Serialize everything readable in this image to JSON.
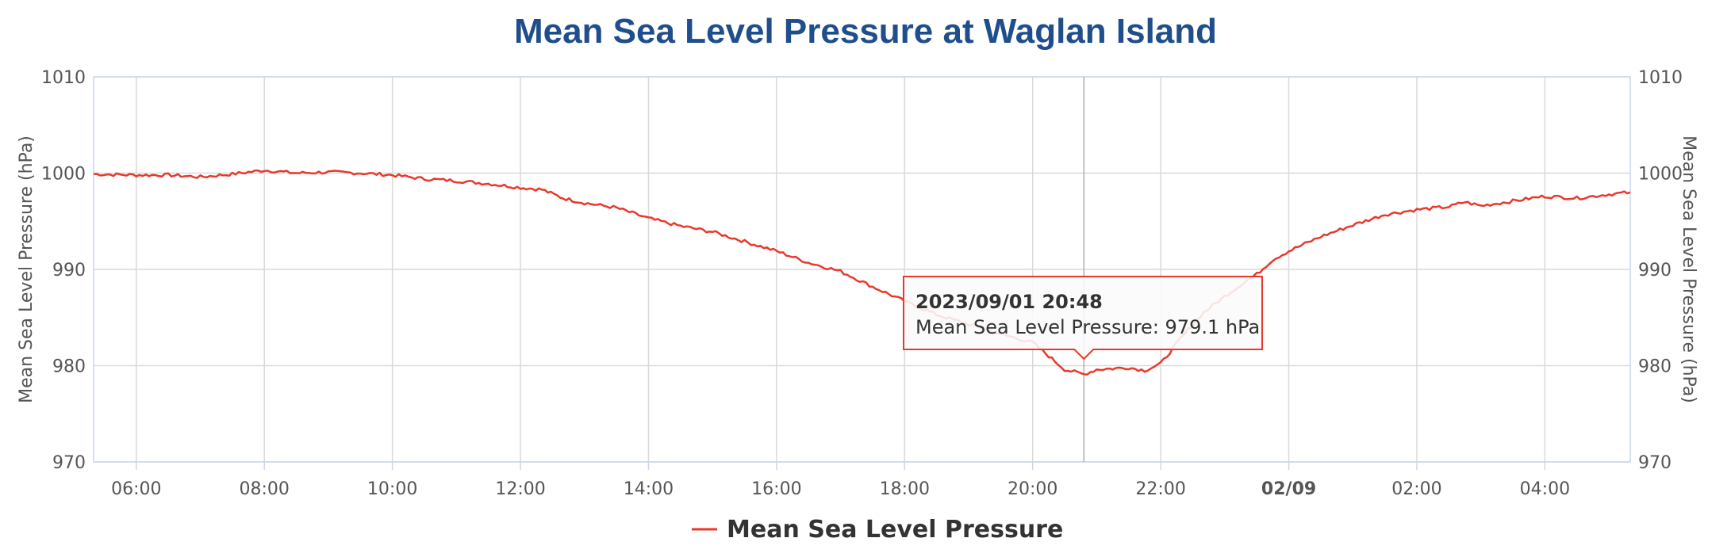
{
  "chart_data": {
    "type": "line",
    "title": "Mean Sea Level Pressure at Waglan Island",
    "ylabel_left": "Mean Sea Level Pressure (hPa)",
    "ylabel_right": "Mean Sea Level Pressure (hPa)",
    "ylim": [
      970,
      1010
    ],
    "yticks": [
      970,
      980,
      990,
      1000,
      1010
    ],
    "xlim": [
      "2023-09-01 05:20",
      "2023-09-02 05:20"
    ],
    "xticks": [
      {
        "t": "2023-09-01 06:00",
        "label": "06:00",
        "bold": false
      },
      {
        "t": "2023-09-01 08:00",
        "label": "08:00",
        "bold": false
      },
      {
        "t": "2023-09-01 10:00",
        "label": "10:00",
        "bold": false
      },
      {
        "t": "2023-09-01 12:00",
        "label": "12:00",
        "bold": false
      },
      {
        "t": "2023-09-01 14:00",
        "label": "14:00",
        "bold": false
      },
      {
        "t": "2023-09-01 16:00",
        "label": "16:00",
        "bold": false
      },
      {
        "t": "2023-09-01 18:00",
        "label": "18:00",
        "bold": false
      },
      {
        "t": "2023-09-01 20:00",
        "label": "20:00",
        "bold": false
      },
      {
        "t": "2023-09-01 22:00",
        "label": "22:00",
        "bold": false
      },
      {
        "t": "2023-09-02 00:00",
        "label": "02/09",
        "bold": true
      },
      {
        "t": "2023-09-02 02:00",
        "label": "02:00",
        "bold": false
      },
      {
        "t": "2023-09-02 04:00",
        "label": "04:00",
        "bold": false
      }
    ],
    "grid": true,
    "legend_position": "bottom-center",
    "series": [
      {
        "name": "Mean Sea Level Pressure",
        "color": "#e8392c",
        "points": [
          [
            "2023-09-01 05:20",
            999.9
          ],
          [
            "2023-09-01 06:00",
            999.8
          ],
          [
            "2023-09-01 06:30",
            999.8
          ],
          [
            "2023-09-01 07:00",
            999.6
          ],
          [
            "2023-09-01 07:30",
            999.9
          ],
          [
            "2023-09-01 08:00",
            1000.3
          ],
          [
            "2023-09-01 08:30",
            1000.0
          ],
          [
            "2023-09-01 09:00",
            1000.1
          ],
          [
            "2023-09-01 09:30",
            1000.0
          ],
          [
            "2023-09-01 10:00",
            999.8
          ],
          [
            "2023-09-01 10:30",
            999.4
          ],
          [
            "2023-09-01 11:00",
            999.2
          ],
          [
            "2023-09-01 11:30",
            998.9
          ],
          [
            "2023-09-01 12:00",
            998.5
          ],
          [
            "2023-09-01 12:20",
            998.3
          ],
          [
            "2023-09-01 12:40",
            997.4
          ],
          [
            "2023-09-01 13:00",
            996.9
          ],
          [
            "2023-09-01 13:30",
            996.4
          ],
          [
            "2023-09-01 14:00",
            995.3
          ],
          [
            "2023-09-01 14:30",
            994.5
          ],
          [
            "2023-09-01 15:00",
            993.9
          ],
          [
            "2023-09-01 15:30",
            992.9
          ],
          [
            "2023-09-01 16:00",
            991.9
          ],
          [
            "2023-09-01 16:30",
            990.7
          ],
          [
            "2023-09-01 17:00",
            989.8
          ],
          [
            "2023-09-01 17:30",
            988.2
          ],
          [
            "2023-09-01 18:00",
            986.7
          ],
          [
            "2023-09-01 18:30",
            985.3
          ],
          [
            "2023-09-01 19:00",
            984.3
          ],
          [
            "2023-09-01 19:30",
            983.3
          ],
          [
            "2023-09-01 20:00",
            982.4
          ],
          [
            "2023-09-01 20:15",
            981.0
          ],
          [
            "2023-09-01 20:30",
            979.6
          ],
          [
            "2023-09-01 20:48",
            979.1
          ],
          [
            "2023-09-01 21:00",
            979.6
          ],
          [
            "2023-09-01 21:30",
            979.8
          ],
          [
            "2023-09-01 21:45",
            979.5
          ],
          [
            "2023-09-01 22:00",
            980.2
          ],
          [
            "2023-09-01 22:20",
            983.0
          ],
          [
            "2023-09-01 22:40",
            985.5
          ],
          [
            "2023-09-01 23:00",
            987.2
          ],
          [
            "2023-09-01 23:20",
            988.8
          ],
          [
            "2023-09-01 23:30",
            989.5
          ],
          [
            "2023-09-01 23:45",
            991.0
          ],
          [
            "2023-09-02 00:00",
            991.9
          ],
          [
            "2023-09-02 00:30",
            993.4
          ],
          [
            "2023-09-02 01:00",
            994.6
          ],
          [
            "2023-09-02 01:30",
            995.7
          ],
          [
            "2023-09-02 02:00",
            996.2
          ],
          [
            "2023-09-02 02:30",
            996.5
          ],
          [
            "2023-09-02 02:45",
            997.0
          ],
          [
            "2023-09-02 03:00",
            996.6
          ],
          [
            "2023-09-02 03:30",
            997.1
          ],
          [
            "2023-09-02 04:00",
            997.6
          ],
          [
            "2023-09-02 04:30",
            997.4
          ],
          [
            "2023-09-02 04:45",
            997.6
          ],
          [
            "2023-09-02 05:00",
            997.8
          ],
          [
            "2023-09-02 05:20",
            998.0
          ]
        ]
      }
    ],
    "tooltip": {
      "t": "2023-09-01 20:48",
      "title": "2023/09/01 20:48",
      "text": "Mean Sea Level Pressure: 979.1 hPa"
    }
  },
  "colors": {
    "title": "#1f4e8c",
    "series": "#e8392c",
    "grid": "#d9d9d9",
    "axis": "#ccd6eb",
    "tooltip_border": "#e8392c",
    "crosshair": "#b0b0b0"
  }
}
